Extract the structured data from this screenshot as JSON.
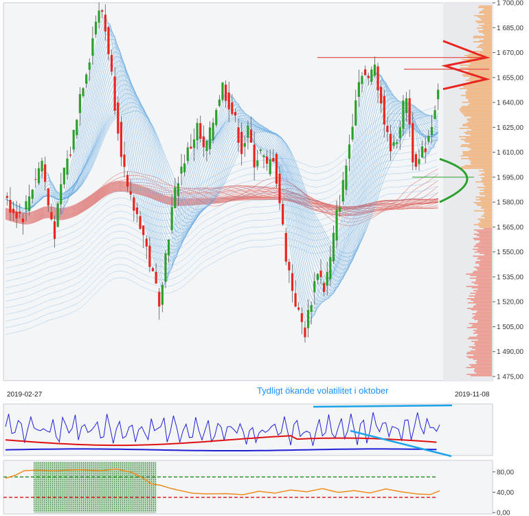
{
  "colors": {
    "up": "#2ca02c",
    "down": "#e8251f",
    "ribbon_blue": "#5aa3e0",
    "ribbon_red": "#d9534f",
    "osc_blue": "#1f1fd6",
    "osc_red": "#e01010",
    "trend": "#1aa3e8",
    "rsi": "#f08a1a",
    "green_dash": "#1a8a1a",
    "red_dash": "#e01010",
    "profile": "#f2a25a",
    "panel_bg": "#eef1f4"
  },
  "chart_data": [
    {
      "type": "candlestick",
      "title": "",
      "x_start_label": "2019-02-27",
      "x_end_label": "2019-11-08",
      "ylim": [
        1475,
        1700
      ],
      "y_ticks": [
        "1 475,00",
        "1 490,00",
        "1 505,00",
        "1 520,00",
        "1 535,00",
        "1 550,00",
        "1 565,00",
        "1 580,00",
        "1 595,00",
        "1 610,00",
        "1 625,00",
        "1 640,00",
        "1 655,00",
        "1 670,00",
        "1 685,00",
        "1 700,00"
      ],
      "y_tick_values": [
        1475,
        1490,
        1505,
        1520,
        1535,
        1550,
        1565,
        1580,
        1595,
        1610,
        1625,
        1640,
        1655,
        1670,
        1685,
        1700
      ],
      "close_path": [
        [
          0,
          1582
        ],
        [
          6,
          1575
        ],
        [
          12,
          1572
        ],
        [
          18,
          1590
        ],
        [
          24,
          1605
        ],
        [
          28,
          1578
        ],
        [
          32,
          1562
        ],
        [
          38,
          1600
        ],
        [
          42,
          1610
        ],
        [
          48,
          1645
        ],
        [
          54,
          1668
        ],
        [
          58,
          1690
        ],
        [
          62,
          1695
        ],
        [
          66,
          1672
        ],
        [
          70,
          1640
        ],
        [
          74,
          1612
        ],
        [
          78,
          1585
        ],
        [
          82,
          1576
        ],
        [
          86,
          1568
        ],
        [
          90,
          1552
        ],
        [
          94,
          1535
        ],
        [
          98,
          1522
        ],
        [
          102,
          1548
        ],
        [
          106,
          1575
        ],
        [
          110,
          1595
        ],
        [
          114,
          1606
        ],
        [
          118,
          1614
        ],
        [
          122,
          1625
        ],
        [
          126,
          1610
        ],
        [
          130,
          1620
        ],
        [
          134,
          1638
        ],
        [
          138,
          1650
        ],
        [
          142,
          1640
        ],
        [
          146,
          1628
        ],
        [
          150,
          1612
        ],
        [
          154,
          1622
        ],
        [
          158,
          1605
        ],
        [
          162,
          1610
        ],
        [
          166,
          1600
        ],
        [
          170,
          1608
        ],
        [
          174,
          1580
        ],
        [
          178,
          1548
        ],
        [
          182,
          1528
        ],
        [
          186,
          1512
        ],
        [
          190,
          1502
        ],
        [
          194,
          1522
        ],
        [
          198,
          1540
        ],
        [
          202,
          1528
        ],
        [
          206,
          1545
        ],
        [
          210,
          1572
        ],
        [
          214,
          1590
        ],
        [
          218,
          1615
        ],
        [
          222,
          1645
        ],
        [
          226,
          1660
        ],
        [
          230,
          1652
        ],
        [
          234,
          1664
        ],
        [
          238,
          1640
        ],
        [
          242,
          1618
        ],
        [
          246,
          1612
        ],
        [
          250,
          1628
        ],
        [
          254,
          1645
        ],
        [
          258,
          1608
        ],
        [
          262,
          1604
        ],
        [
          266,
          1614
        ],
        [
          270,
          1628
        ],
        [
          274,
          1650
        ]
      ],
      "osc_y": "volatility",
      "trend_annotations": [
        {
          "kind": "resistance",
          "price": 1667
        },
        {
          "kind": "resistance",
          "price": 1660
        },
        {
          "kind": "support",
          "price": 1595
        }
      ],
      "annotation": "Tydligt ökande volatilitet i oktober"
    },
    {
      "type": "line",
      "title": "",
      "series": [
        {
          "name": "",
          "color_key": "osc_blue"
        },
        {
          "name": "",
          "color_key": "osc_red"
        },
        {
          "name": "",
          "color_key": "osc_blue"
        }
      ]
    },
    {
      "type": "line",
      "title": "",
      "ylim": [
        0,
        100
      ],
      "y_ticks": [
        "80,00",
        "40,00",
        "0,00"
      ],
      "y_tick_values": [
        80,
        40,
        0
      ],
      "levels": [
        70,
        30
      ],
      "rsi_path": [
        [
          0,
          68
        ],
        [
          6,
          72
        ],
        [
          12,
          82
        ],
        [
          20,
          85
        ],
        [
          30,
          83
        ],
        [
          45,
          84
        ],
        [
          60,
          83
        ],
        [
          70,
          84
        ],
        [
          80,
          80
        ],
        [
          86,
          70
        ],
        [
          92,
          58
        ],
        [
          98,
          52
        ],
        [
          104,
          48
        ],
        [
          110,
          44
        ],
        [
          118,
          40
        ],
        [
          126,
          38
        ],
        [
          140,
          39
        ],
        [
          150,
          37
        ],
        [
          160,
          40
        ],
        [
          170,
          38
        ],
        [
          180,
          45
        ],
        [
          190,
          42
        ],
        [
          200,
          48
        ],
        [
          210,
          40
        ],
        [
          220,
          44
        ],
        [
          230,
          38
        ],
        [
          240,
          46
        ],
        [
          250,
          40
        ],
        [
          260,
          38
        ],
        [
          268,
          36
        ],
        [
          274,
          42
        ]
      ]
    }
  ]
}
